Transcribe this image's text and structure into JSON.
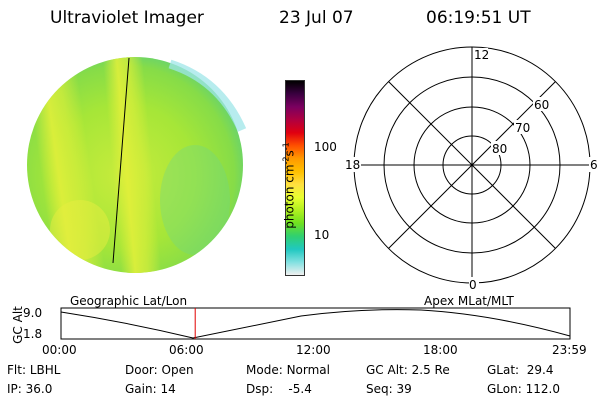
{
  "header": {
    "title": "Ultraviolet Imager",
    "date": "23 Jul 07",
    "time": "06:19:51 UT"
  },
  "colorbar": {
    "label_main": "photon cm",
    "label_exp1": "-2",
    "label_mid": "s",
    "label_exp2": "-1",
    "ticks": [
      "100",
      "10"
    ],
    "scale": "log",
    "colors": [
      "#000000",
      "#3a0040",
      "#7a0060",
      "#b00040",
      "#e00010",
      "#ff5000",
      "#ff9a00",
      "#ffc000",
      "#ffe040",
      "#e8ff30",
      "#b0f020",
      "#70e020",
      "#30d070",
      "#20c8c0",
      "#80e0e0",
      "#f0f0f0"
    ]
  },
  "left_panel": {
    "label": "Geographic Lat/Lon"
  },
  "right_panel": {
    "label": "Apex MLat/MLT",
    "mlt_labels": [
      "12",
      "18",
      "6",
      "0"
    ],
    "lat_labels": [
      "60",
      "70",
      "80"
    ]
  },
  "altitude_plot": {
    "ylabel": "GC Alt",
    "yticks": [
      "9.0",
      "1.8"
    ],
    "xticks": [
      "00:00",
      "06:00",
      "12:00",
      "18:00",
      "23:59"
    ],
    "current_time_hours": 6.33
  },
  "info": {
    "row1": [
      {
        "label": "Flt:",
        "value": "LBHL"
      },
      {
        "label": "Door:",
        "value": "Open"
      },
      {
        "label": "Mode:",
        "value": "Normal"
      },
      {
        "label": "GC Alt:",
        "value": "2.5 Re"
      },
      {
        "label": "GLat:",
        "value": "29.4"
      }
    ],
    "row2": [
      {
        "label": "IP:",
        "value": "36.0"
      },
      {
        "label": "Gain:",
        "value": "14"
      },
      {
        "label": "Dsp:",
        "value": "-5.4"
      },
      {
        "label": "Seq:",
        "value": "39"
      },
      {
        "label": "GLon:",
        "value": "112.0"
      }
    ]
  }
}
